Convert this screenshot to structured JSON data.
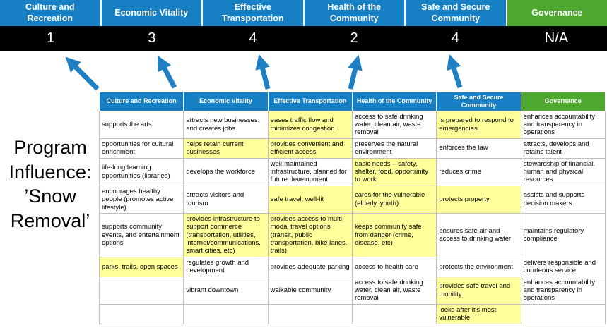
{
  "title": {
    "text": "Program Influence: ’Snow Removal’"
  },
  "colors": {
    "category_blue": "#1780C4",
    "governance_green": "#4EA72E",
    "score_band_bg": "#000000",
    "highlight_yellow": "#FFFF9C",
    "arrow_blue": "#1E7FC2"
  },
  "categories": [
    {
      "name": "Culture and Recreation",
      "score": "1",
      "color": "#1780C4"
    },
    {
      "name": "Economic Vitality",
      "score": "3",
      "color": "#1780C4"
    },
    {
      "name": "Effective Transportation",
      "score": "4",
      "color": "#1780C4"
    },
    {
      "name": "Health of the Community",
      "score": "2",
      "color": "#1780C4"
    },
    {
      "name": "Safe and Secure Community",
      "score": "4",
      "color": "#1780C4"
    },
    {
      "name": "Governance",
      "score": "N/A",
      "color": "#4EA72E"
    }
  ],
  "matrix": {
    "rows": [
      [
        {
          "text": "supports the arts",
          "highlight": false
        },
        {
          "text": "attracts new businesses, and creates jobs",
          "highlight": false
        },
        {
          "text": "eases traffic flow and minimizes congestion",
          "highlight": true
        },
        {
          "text": "access to safe drinking water, clean air, waste removal",
          "highlight": false
        },
        {
          "text": "is prepared to respond to emergencies",
          "highlight": true
        },
        {
          "text": "enhances accountability and transparency in operations",
          "highlight": false
        }
      ],
      [
        {
          "text": "opportunities for cultural enrichment",
          "highlight": false
        },
        {
          "text": "helps retain current businesses",
          "highlight": true
        },
        {
          "text": "provides convenient and efficient access",
          "highlight": true
        },
        {
          "text": "preserves the natural environment",
          "highlight": false
        },
        {
          "text": "enforces the law",
          "highlight": false
        },
        {
          "text": "attracts, develops and retains talent",
          "highlight": false
        }
      ],
      [
        {
          "text": "life-long learning opportunities (libraries)",
          "highlight": false
        },
        {
          "text": "develops the workforce",
          "highlight": false
        },
        {
          "text": "well-maintained infrastructure, planned for future development",
          "highlight": false
        },
        {
          "text": "basic needs – safety, shelter, food, opportunity to work",
          "highlight": true
        },
        {
          "text": "reduces crime",
          "highlight": false
        },
        {
          "text": "stewardship of financial, human and physical resources",
          "highlight": false
        }
      ],
      [
        {
          "text": "encourages healthy people (promotes active lifestyle)",
          "highlight": false
        },
        {
          "text": "attracts visitors and tourism",
          "highlight": false
        },
        {
          "text": "safe travel, well-lit",
          "highlight": true
        },
        {
          "text": "cares for the vulnerable (elderly, youth)",
          "highlight": true
        },
        {
          "text": "protects property",
          "highlight": true
        },
        {
          "text": "assists and supports decision makers",
          "highlight": false
        }
      ],
      [
        {
          "text": "supports community events, and entertainment options",
          "highlight": false
        },
        {
          "text": "provides infrastructure to support commerce (transportation, utilities, internet/communications, smart cities, etc)",
          "highlight": true
        },
        {
          "text": "provides access to multi-modal travel options (transit, public transportation, bike lanes, trails)",
          "highlight": true
        },
        {
          "text": "keeps community safe from danger (crime, disease, etc)",
          "highlight": true
        },
        {
          "text": "ensures safe air and access to drinking water",
          "highlight": false
        },
        {
          "text": "maintains regulatory compliance",
          "highlight": false
        }
      ],
      [
        {
          "text": "parks, trails, open spaces",
          "highlight": true
        },
        {
          "text": "regulates growth and development",
          "highlight": false
        },
        {
          "text": "provides adequate parking",
          "highlight": false
        },
        {
          "text": "access to health care",
          "highlight": false
        },
        {
          "text": "protects the environment",
          "highlight": false
        },
        {
          "text": "delivers responsible and courteous service",
          "highlight": false
        }
      ],
      [
        {
          "text": "",
          "highlight": false
        },
        {
          "text": "vibrant downtown",
          "highlight": false
        },
        {
          "text": "walkable community",
          "highlight": false
        },
        {
          "text": "access to safe drinking water, clean air, waste removal",
          "highlight": false
        },
        {
          "text": "provides safe travel and mobility",
          "highlight": true
        },
        {
          "text": "enhances accountability and transparency in operations",
          "highlight": false
        }
      ],
      [
        {
          "text": "",
          "highlight": false
        },
        {
          "text": "",
          "highlight": false
        },
        {
          "text": "",
          "highlight": false
        },
        {
          "text": "",
          "highlight": false
        },
        {
          "text": "looks after it's most vulnerable",
          "highlight": true
        },
        {
          "text": "",
          "highlight": false
        }
      ]
    ]
  }
}
